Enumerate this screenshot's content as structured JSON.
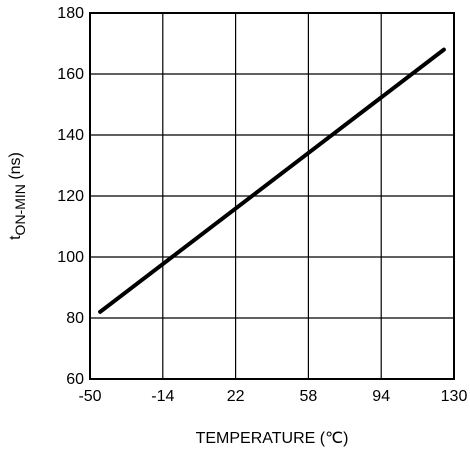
{
  "chart_data": {
    "type": "line",
    "title": "",
    "xlabel": "TEMPERATURE (℃)",
    "ylabel": {
      "main": "t",
      "subscript": "ON-MIN",
      "suffix": " (ns)"
    },
    "xlim": [
      -50,
      130
    ],
    "ylim": [
      60,
      180
    ],
    "xticks": [
      -50,
      -14,
      22,
      58,
      94,
      130
    ],
    "xtick_labels": [
      "-50",
      "-14",
      "22",
      "58",
      "94",
      "130"
    ],
    "yticks": [
      60,
      80,
      100,
      120,
      140,
      160,
      180
    ],
    "ytick_labels": [
      "60",
      "80",
      "100",
      "120",
      "140",
      "160",
      "180"
    ],
    "grid": true,
    "legend": "none",
    "series": [
      {
        "color": "#000000",
        "x": [
          -45,
          125
        ],
        "y": [
          82,
          168
        ]
      }
    ]
  }
}
